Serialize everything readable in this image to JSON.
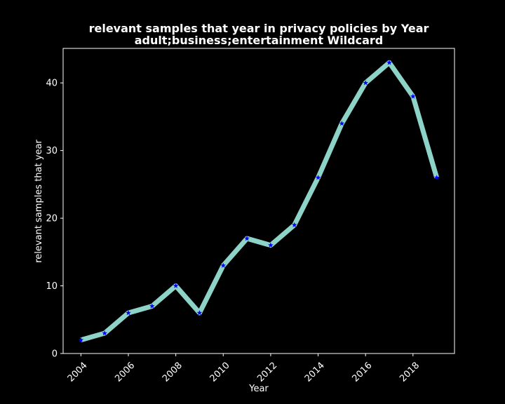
{
  "chart_data": {
    "type": "line",
    "title": "relevant samples that year in privacy policies by Year",
    "subtitle": "adult;business;entertainment Wildcard",
    "xlabel": "Year",
    "ylabel": "relevant samples that year",
    "x": [
      2004,
      2005,
      2006,
      2007,
      2008,
      2009,
      2010,
      2011,
      2012,
      2013,
      2014,
      2015,
      2016,
      2017,
      2018,
      2019
    ],
    "series": [
      {
        "values": [
          2,
          3,
          6,
          7,
          10,
          6,
          13,
          17,
          16,
          19,
          26,
          34,
          40,
          43,
          38,
          26
        ]
      }
    ],
    "x_ticks": [
      "2004",
      "2006",
      "2008",
      "2010",
      "2012",
      "2014",
      "2016",
      "2018"
    ],
    "y_ticks": [
      "0",
      "10",
      "20",
      "30",
      "40"
    ],
    "xlim": [
      2003.25,
      2019.75
    ],
    "ylim": [
      0,
      45.1
    ],
    "grid": false,
    "legend": "none",
    "colors": {
      "background": "#000000",
      "line": "#8dd3c7",
      "marker": "#0000ff",
      "axis": "#ffffff",
      "text": "#ffffff"
    },
    "marker": "star"
  }
}
